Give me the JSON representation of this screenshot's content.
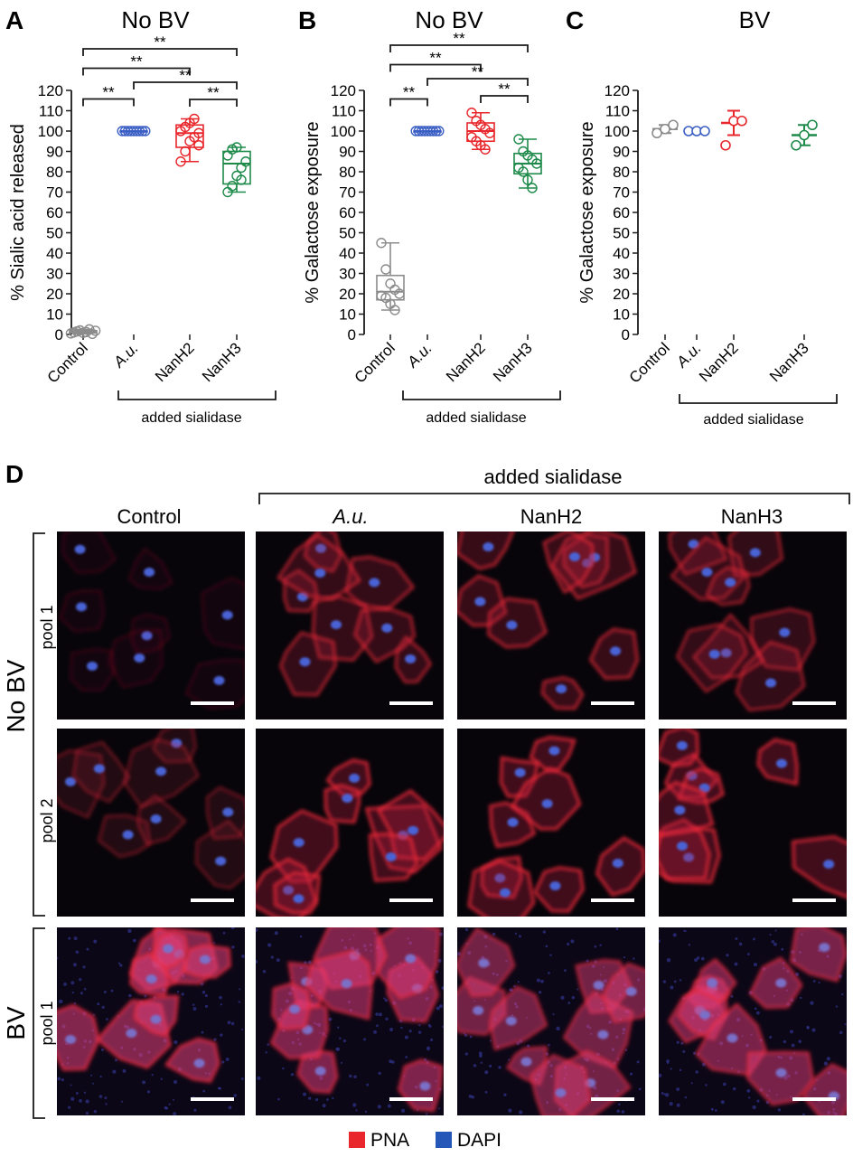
{
  "panels": {
    "A": {
      "letter": "A",
      "title": "No BV",
      "ylabel": "% Sialic acid released"
    },
    "B": {
      "letter": "B",
      "title": "No BV",
      "ylabel": "% Galactose exposure"
    },
    "C": {
      "letter": "C",
      "title": "BV",
      "ylabel": "% Galactose exposure"
    },
    "D": {
      "letter": "D"
    }
  },
  "categories": [
    "Control",
    "A.u.",
    "NanH2",
    "NanH3"
  ],
  "bracket_label": "added sialidase",
  "significance_label": "**",
  "colors": {
    "Control": "#8c8c8c",
    "A.u.": "#3b5fc4",
    "NanH2": "#e8262b",
    "NanH3": "#1e8a4a",
    "pna": "#e8262b",
    "dapi": "#2457b8"
  },
  "y_ticks": [
    "0",
    "10",
    "20",
    "30",
    "40",
    "50",
    "60",
    "70",
    "80",
    "90",
    "100",
    "110",
    "120"
  ],
  "chart_data": [
    {
      "type": "box",
      "panel": "A",
      "title": "No BV",
      "ylabel": "% Sialic acid released",
      "ylim": [
        0,
        120
      ],
      "categories": [
        "Control",
        "A.u.",
        "NanH2",
        "NanH3"
      ],
      "points": [
        [
          0.5,
          1,
          1.5,
          2,
          0.8,
          1.2,
          2.5,
          0.3,
          1.8
        ],
        [
          100,
          100,
          100,
          100,
          100,
          100,
          100,
          100,
          100
        ],
        [
          85,
          90,
          95,
          97,
          99,
          100,
          102,
          104,
          106,
          93
        ],
        [
          70,
          73,
          78,
          82,
          85,
          88,
          91,
          92,
          76
        ]
      ],
      "box": [
        {
          "min": 0.3,
          "q1": 0.7,
          "median": 1.2,
          "q3": 1.9,
          "max": 2.5
        },
        {
          "min": 100,
          "q1": 100,
          "median": 100,
          "q3": 100,
          "max": 100
        },
        {
          "min": 85,
          "q1": 92,
          "median": 99,
          "q3": 103,
          "max": 106
        },
        {
          "min": 70,
          "q1": 74,
          "median": 84,
          "q3": 90,
          "max": 92
        }
      ],
      "significance": [
        {
          "from": 0,
          "to": 3,
          "label": "**"
        },
        {
          "from": 0,
          "to": 2,
          "label": "**"
        },
        {
          "from": 1,
          "to": 3,
          "label": "**"
        },
        {
          "from": 2,
          "to": 3,
          "label": "**"
        },
        {
          "from": 0,
          "to": 1,
          "label": "**"
        }
      ]
    },
    {
      "type": "box",
      "panel": "B",
      "title": "No BV",
      "ylabel": "% Galactose exposure",
      "ylim": [
        0,
        120
      ],
      "categories": [
        "Control",
        "A.u.",
        "NanH2",
        "NanH3"
      ],
      "points": [
        [
          45,
          32,
          25,
          22,
          20,
          19,
          18,
          15,
          12
        ],
        [
          100,
          100,
          100,
          100,
          100,
          100,
          100,
          100,
          100
        ],
        [
          109,
          105,
          103,
          101,
          99,
          97,
          95,
          93,
          91
        ],
        [
          96,
          90,
          88,
          86,
          84,
          82,
          80,
          76,
          72
        ]
      ],
      "box": [
        {
          "min": 12,
          "q1": 17,
          "median": 21,
          "q3": 29,
          "max": 45
        },
        {
          "min": 100,
          "q1": 100,
          "median": 100,
          "q3": 100,
          "max": 100
        },
        {
          "min": 91,
          "q1": 95,
          "median": 100,
          "q3": 104,
          "max": 109
        },
        {
          "min": 72,
          "q1": 79,
          "median": 84,
          "q3": 89,
          "max": 96
        }
      ],
      "significance": [
        {
          "from": 0,
          "to": 3,
          "label": "**"
        },
        {
          "from": 0,
          "to": 2,
          "label": "**"
        },
        {
          "from": 1,
          "to": 3,
          "label": "**"
        },
        {
          "from": 2,
          "to": 3,
          "label": "**"
        },
        {
          "from": 0,
          "to": 1,
          "label": "**"
        }
      ]
    },
    {
      "type": "scatter",
      "panel": "C",
      "title": "BV",
      "ylabel": "% Galactose exposure",
      "ylim": [
        0,
        120
      ],
      "categories": [
        "Control",
        "A.u.",
        "NanH2",
        "NanH3"
      ],
      "points": [
        [
          99,
          101,
          103
        ],
        [
          100,
          100,
          100
        ],
        [
          93,
          105,
          105
        ],
        [
          93,
          98,
          103
        ]
      ],
      "mean": [
        101,
        100,
        104,
        98
      ],
      "sd": [
        2,
        0,
        6,
        5
      ]
    }
  ],
  "micrographs": {
    "columns": [
      "Control",
      "A.u.",
      "NanH2",
      "NanH3"
    ],
    "group_labels": [
      "No BV",
      "BV"
    ],
    "row_labels": [
      "pool 1",
      "pool 2",
      "pool 1"
    ]
  },
  "legend": [
    {
      "label": "PNA",
      "color": "#e8262b"
    },
    {
      "label": "DAPI",
      "color": "#2457b8"
    }
  ]
}
